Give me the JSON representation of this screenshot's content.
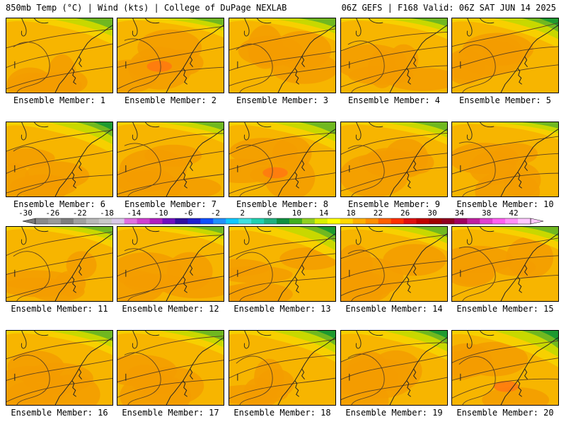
{
  "header": {
    "left": "850mb Temp (°C) | Wind (kts) | College of DuPage NEXLAB",
    "right": "06Z GEFS | F168 Valid: 06Z SAT JUN 14 2025"
  },
  "panels": [
    {
      "label": "Ensemble Member: 1",
      "green": 0.55
    },
    {
      "label": "Ensemble Member: 2",
      "green": 0.35
    },
    {
      "label": "Ensemble Member: 3",
      "green": 0.45
    },
    {
      "label": "Ensemble Member: 4",
      "green": 0.4
    },
    {
      "label": "Ensemble Member: 5",
      "green": 0.65
    },
    {
      "label": "Ensemble Member: 6",
      "green": 0.7
    },
    {
      "label": "Ensemble Member: 7",
      "green": 0.4
    },
    {
      "label": "Ensemble Member: 8",
      "green": 0.6
    },
    {
      "label": "Ensemble Member: 9",
      "green": 0.45
    },
    {
      "label": "Ensemble Member: 10",
      "green": 0.3
    },
    {
      "label": "Ensemble Member: 11",
      "green": 0.4
    },
    {
      "label": "Ensemble Member: 12",
      "green": 0.35
    },
    {
      "label": "Ensemble Member: 13",
      "green": 0.75
    },
    {
      "label": "Ensemble Member: 14",
      "green": 0.5
    },
    {
      "label": "Ensemble Member: 15",
      "green": 0.45
    },
    {
      "label": "Ensemble Member: 16",
      "green": 0.5
    },
    {
      "label": "Ensemble Member: 17",
      "green": 0.5
    },
    {
      "label": "Ensemble Member: 18",
      "green": 0.7
    },
    {
      "label": "Ensemble Member: 19",
      "green": 0.65
    },
    {
      "label": "Ensemble Member: 20",
      "green": 0.85
    }
  ],
  "colorbar": {
    "ticks": [
      "-30",
      "-26",
      "-22",
      "-18",
      "-14",
      "-10",
      "-6",
      "-2",
      "2",
      "6",
      "10",
      "14",
      "18",
      "22",
      "26",
      "30",
      "34",
      "38",
      "42"
    ],
    "colors": [
      "#8a8a8a",
      "#9a9a9a",
      "#7e7e7e",
      "#a0a0a0",
      "#b8b8b8",
      "#c8c8c8",
      "#d8c8e8",
      "#e070e0",
      "#d040d0",
      "#b020c0",
      "#7010c0",
      "#3010a0",
      "#2020d0",
      "#1050ff",
      "#2090ff",
      "#10c8ff",
      "#40e0e0",
      "#20d0b0",
      "#20b080",
      "#109040",
      "#40b020",
      "#90d020",
      "#d8f000",
      "#ffff00",
      "#ffd800",
      "#ffb000",
      "#ff9000",
      "#ff6000",
      "#ff3000",
      "#e01010",
      "#c00000",
      "#a00000",
      "#900020",
      "#a00060",
      "#c020a0",
      "#e040d0",
      "#ff60f0",
      "#ff90f8",
      "#ffc8ff"
    ]
  }
}
